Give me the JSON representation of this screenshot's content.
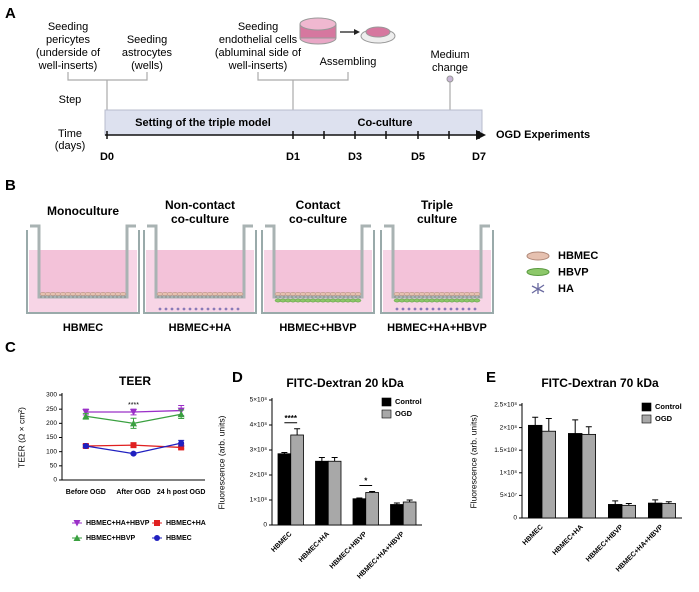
{
  "panel_a": {
    "label": "A",
    "steps": [
      {
        "lines": [
          "Seeding",
          "pericytes",
          "(underside of",
          "well-inserts)"
        ]
      },
      {
        "lines": [
          "Seeding",
          "astrocytes",
          "(wells)"
        ]
      },
      {
        "lines": [
          "Seeding",
          "endothelial cells",
          "(abluminal side of",
          "well-inserts)"
        ]
      },
      {
        "lines": [
          "Assembling"
        ]
      },
      {
        "lines": [
          "Medium",
          "change"
        ]
      }
    ],
    "step_label": "Step",
    "time_label": [
      "Time",
      "(days)"
    ],
    "phases": [
      "Setting of the triple model",
      "Co-culture"
    ],
    "days": [
      "D0",
      "D1",
      "D3",
      "D5",
      "D7"
    ],
    "end_label": "OGD Experiments"
  },
  "panel_b": {
    "label": "B",
    "models": [
      {
        "title": [
          "Monoculture"
        ],
        "label": "HBMEC"
      },
      {
        "title": [
          "Non-contact",
          "co-culture"
        ],
        "label": "HBMEC+HA"
      },
      {
        "title": [
          "Contact",
          "co-culture"
        ],
        "label": "HBMEC+HBVP"
      },
      {
        "title": [
          "Triple",
          "culture"
        ],
        "label": "HBMEC+HA+HBVP"
      }
    ],
    "legend": [
      "HBMEC",
      "HBVP",
      "HA"
    ]
  },
  "chart_data": [
    {
      "panel": "C",
      "type": "line",
      "title": "TEER",
      "y_label": "TEER (Ω × cm²)",
      "categories": [
        "Before OGD",
        "After OGD",
        "24 h post OGD"
      ],
      "series": [
        {
          "name": "HBMEC+HA+HBVP",
          "color": "#9b30c8",
          "marker": "triangle-down",
          "values": [
            240,
            240,
            245
          ],
          "errors": [
            10,
            10,
            18
          ]
        },
        {
          "name": "HBMEC+HA",
          "color": "#e02020",
          "marker": "square",
          "values": [
            120,
            123,
            115
          ],
          "errors": [
            5,
            5,
            5
          ]
        },
        {
          "name": "HBMEC+HBVP",
          "color": "#3aa040",
          "marker": "triangle-up",
          "values": [
            225,
            200,
            232
          ],
          "errors": [
            10,
            18,
            15
          ]
        },
        {
          "name": "HBMEC",
          "color": "#2020c0",
          "marker": "circle",
          "values": [
            120,
            93,
            130
          ],
          "errors": [
            5,
            3,
            10
          ]
        }
      ],
      "ylim": [
        0,
        300
      ],
      "yticks": [
        0,
        50,
        100,
        150,
        200,
        250,
        300
      ],
      "annotations": [
        "****"
      ]
    },
    {
      "panel": "D",
      "type": "bar",
      "title": "FITC-Dextran 20 kDa",
      "y_label": "Fluorescence (arb. units)",
      "categories": [
        "HBMEC",
        "HBMEC+HA",
        "HBMEC+HBVP",
        "HBMEC+HA+HBVP"
      ],
      "series": [
        {
          "name": "Control",
          "color": "#000000",
          "values": [
            285000000,
            255000000,
            105000000,
            82000000
          ],
          "errors": [
            5000000,
            15000000,
            3000000,
            6000000
          ]
        },
        {
          "name": "OGD",
          "color": "#a8a8a8",
          "values": [
            360000000,
            255000000,
            130000000,
            92000000
          ],
          "errors": [
            25000000,
            15000000,
            4000000,
            8000000
          ]
        }
      ],
      "ylim": [
        0,
        500000000
      ],
      "yticks": [
        0,
        {
          "value": 100000000,
          "label": "1×10⁸"
        },
        {
          "value": 200000000,
          "label": "2×10⁸"
        },
        {
          "value": 300000000,
          "label": "3×10⁸"
        },
        {
          "value": 400000000,
          "label": "4×10⁸"
        },
        {
          "value": 500000000,
          "label": "5×10⁸"
        }
      ],
      "annotations": [
        "****",
        "*"
      ]
    },
    {
      "panel": "E",
      "type": "bar",
      "title": "FITC-Dextran 70 kDa",
      "y_label": "Fluorescence (arb. units)",
      "categories": [
        "HBMEC",
        "HBMEC+HA",
        "HBMEC+HBVP",
        "HBMEC+HA+HBVP"
      ],
      "series": [
        {
          "name": "Control",
          "color": "#000000",
          "values": [
            205000000,
            187000000,
            30000000,
            33000000
          ],
          "errors": [
            18000000,
            30000000,
            8000000,
            7000000
          ]
        },
        {
          "name": "OGD",
          "color": "#a8a8a8",
          "values": [
            192000000,
            185000000,
            28000000,
            32000000
          ],
          "errors": [
            28000000,
            17000000,
            4000000,
            4000000
          ]
        }
      ],
      "ylim": [
        0,
        250000000
      ],
      "yticks": [
        0,
        {
          "value": 50000000,
          "label": "5×10⁷"
        },
        {
          "value": 100000000,
          "label": "1×10⁸"
        },
        {
          "value": 150000000,
          "label": "1.5×10⁸"
        },
        {
          "value": 200000000,
          "label": "2×10⁸"
        },
        {
          "value": 250000000,
          "label": "2.5×10⁸"
        }
      ],
      "annotations": []
    }
  ]
}
